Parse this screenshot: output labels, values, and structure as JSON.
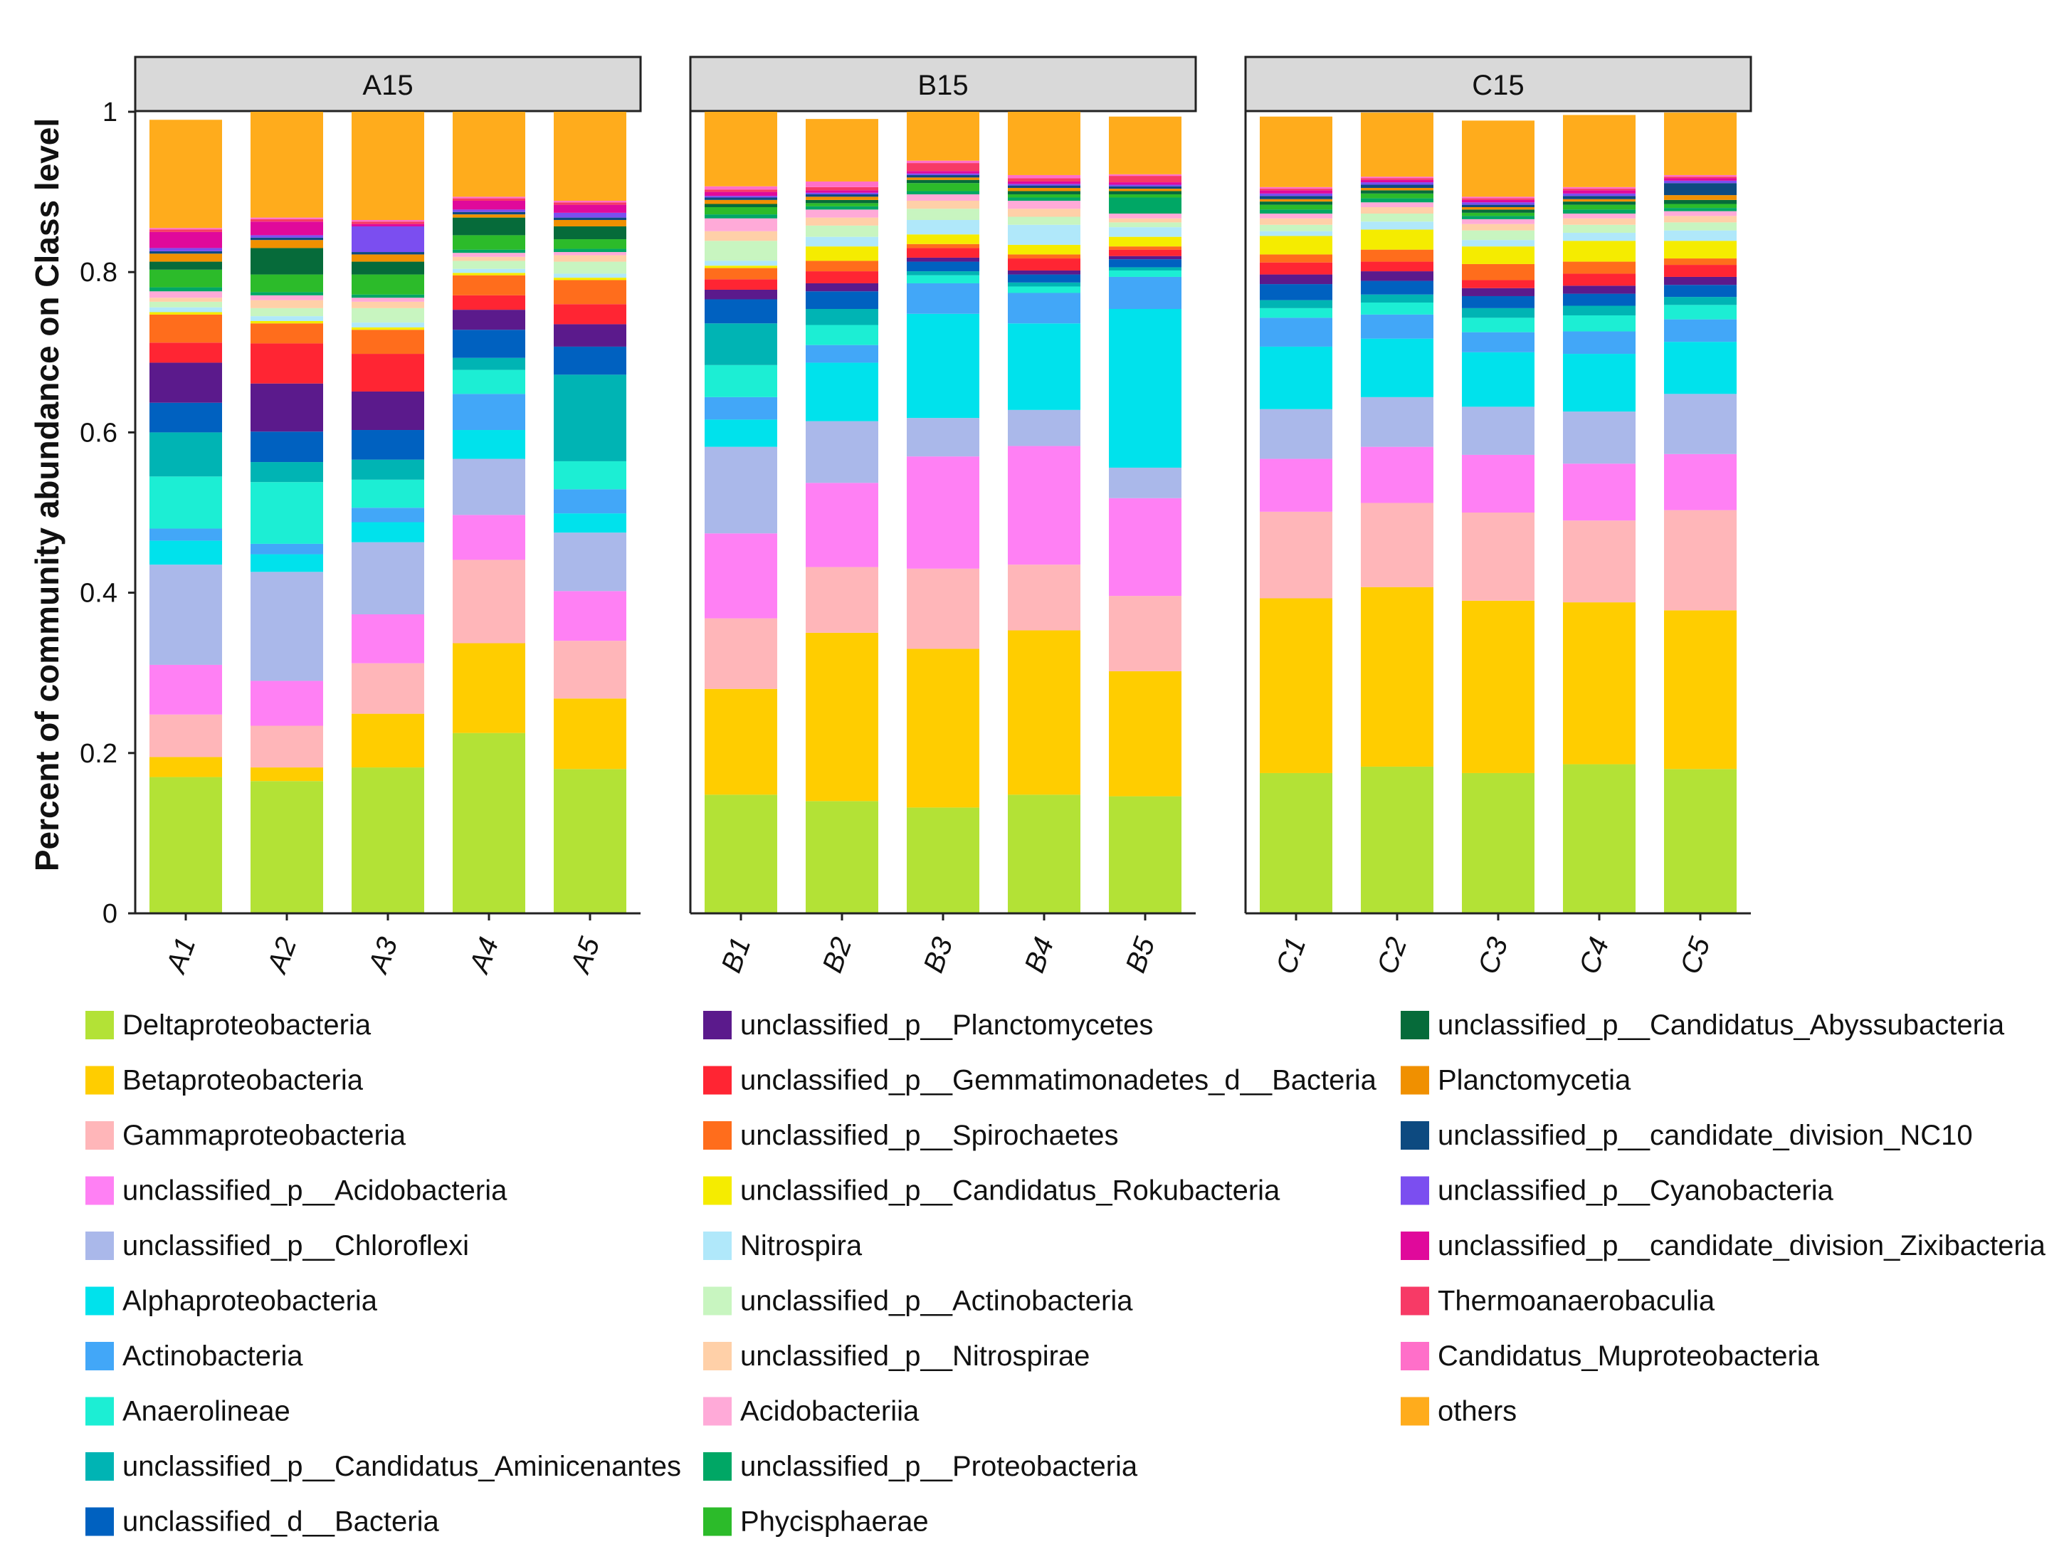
{
  "chart_data": {
    "type": "stacked-bar",
    "ylabel": "Percent of community abundance on Class level",
    "ylim": [
      0,
      1
    ],
    "yticks": [
      "0",
      "0.2",
      "0.4",
      "0.6",
      "0.8",
      "1"
    ],
    "panels": [
      {
        "name": "A15",
        "categories": [
          "A1",
          "A2",
          "A3",
          "A4",
          "A5"
        ]
      },
      {
        "name": "B15",
        "categories": [
          "B1",
          "B2",
          "B3",
          "B4",
          "B5"
        ]
      },
      {
        "name": "C15",
        "categories": [
          "C1",
          "C2",
          "C3",
          "C4",
          "C5"
        ]
      }
    ],
    "series": [
      {
        "name": "Deltaproteobacteria",
        "color": "#b3e236",
        "values": [
          0.17,
          0.165,
          0.182,
          0.225,
          0.18,
          0.148,
          0.14,
          0.132,
          0.148,
          0.146,
          0.175,
          0.183,
          0.175,
          0.186,
          0.18
        ]
      },
      {
        "name": "Betaproteobacteria",
        "color": "#ffcd00",
        "values": [
          0.025,
          0.017,
          0.067,
          0.112,
          0.088,
          0.132,
          0.21,
          0.198,
          0.205,
          0.156,
          0.218,
          0.224,
          0.215,
          0.202,
          0.198
        ]
      },
      {
        "name": "Gammaproteobacteria",
        "color": "#ffb6b9",
        "values": [
          0.053,
          0.052,
          0.063,
          0.104,
          0.072,
          0.088,
          0.082,
          0.1,
          0.082,
          0.094,
          0.108,
          0.105,
          0.11,
          0.102,
          0.125
        ]
      },
      {
        "name": "unclassified_p__Acidobacteria",
        "color": "#ff80f4",
        "values": [
          0.062,
          0.056,
          0.061,
          0.056,
          0.062,
          0.106,
          0.105,
          0.14,
          0.148,
          0.122,
          0.066,
          0.07,
          0.072,
          0.071,
          0.07
        ]
      },
      {
        "name": "unclassified_p__Chloroflexi",
        "color": "#aab8ea",
        "values": [
          0.125,
          0.136,
          0.09,
          0.07,
          0.073,
          0.108,
          0.077,
          0.048,
          0.045,
          0.038,
          0.062,
          0.062,
          0.06,
          0.065,
          0.075
        ]
      },
      {
        "name": "Alphaproteobacteria",
        "color": "#00e2ec",
        "values": [
          0.03,
          0.022,
          0.025,
          0.036,
          0.024,
          0.034,
          0.073,
          0.13,
          0.108,
          0.198,
          0.078,
          0.073,
          0.068,
          0.072,
          0.065
        ]
      },
      {
        "name": "Actinobacteria",
        "color": "#42a7f8",
        "values": [
          0.015,
          0.013,
          0.018,
          0.045,
          0.03,
          0.028,
          0.022,
          0.038,
          0.038,
          0.04,
          0.036,
          0.03,
          0.025,
          0.028,
          0.028
        ]
      },
      {
        "name": "Anaerolineae",
        "color": "#1ceed4",
        "values": [
          0.065,
          0.077,
          0.035,
          0.03,
          0.035,
          0.04,
          0.025,
          0.01,
          0.008,
          0.008,
          0.012,
          0.015,
          0.018,
          0.02,
          0.018
        ]
      },
      {
        "name": "unclassified_p__Candidatus_Aminicenantes",
        "color": "#00b4b4",
        "values": [
          0.055,
          0.025,
          0.025,
          0.015,
          0.108,
          0.052,
          0.02,
          0.005,
          0.005,
          0.004,
          0.01,
          0.01,
          0.012,
          0.012,
          0.01
        ]
      },
      {
        "name": "unclassified_d__Bacteria",
        "color": "#0061c0",
        "values": [
          0.037,
          0.038,
          0.037,
          0.035,
          0.035,
          0.03,
          0.022,
          0.012,
          0.01,
          0.01,
          0.02,
          0.017,
          0.015,
          0.015,
          0.015
        ]
      },
      {
        "name": "unclassified_p__Planctomycetes",
        "color": "#5b1a8c",
        "values": [
          0.05,
          0.06,
          0.048,
          0.025,
          0.028,
          0.012,
          0.01,
          0.005,
          0.005,
          0.004,
          0.012,
          0.012,
          0.01,
          0.01,
          0.01
        ]
      },
      {
        "name": "unclassified_p__Gemmatimonadetes_d__Bacteria",
        "color": "#ff2533",
        "values": [
          0.025,
          0.05,
          0.047,
          0.018,
          0.025,
          0.013,
          0.015,
          0.012,
          0.015,
          0.008,
          0.015,
          0.012,
          0.01,
          0.015,
          0.015
        ]
      },
      {
        "name": "unclassified_p__Spirochaetes",
        "color": "#ff6d1c",
        "values": [
          0.035,
          0.025,
          0.03,
          0.025,
          0.03,
          0.014,
          0.013,
          0.005,
          0.005,
          0.004,
          0.01,
          0.015,
          0.02,
          0.015,
          0.008
        ]
      },
      {
        "name": "unclassified_p__Candidatus_Rokubacteria",
        "color": "#f5ec00",
        "values": [
          0.003,
          0.003,
          0.003,
          0.003,
          0.003,
          0.003,
          0.018,
          0.012,
          0.012,
          0.012,
          0.023,
          0.025,
          0.022,
          0.026,
          0.022
        ]
      },
      {
        "name": "Nitrospira",
        "color": "#b0e8fa",
        "values": [
          0.006,
          0.006,
          0.006,
          0.005,
          0.005,
          0.006,
          0.012,
          0.018,
          0.025,
          0.012,
          0.006,
          0.01,
          0.008,
          0.01,
          0.013
        ]
      },
      {
        "name": "unclassified_p__Actinobacteria",
        "color": "#c8f5c0",
        "values": [
          0.007,
          0.01,
          0.018,
          0.01,
          0.015,
          0.025,
          0.014,
          0.014,
          0.01,
          0.006,
          0.008,
          0.01,
          0.012,
          0.01,
          0.01
        ]
      },
      {
        "name": "unclassified_p__Nitrospirae",
        "color": "#ffd0a8",
        "values": [
          0.005,
          0.01,
          0.008,
          0.005,
          0.008,
          0.012,
          0.01,
          0.01,
          0.01,
          0.005,
          0.008,
          0.008,
          0.008,
          0.008,
          0.008
        ]
      },
      {
        "name": "Acidobacteriia",
        "color": "#ffaad8",
        "values": [
          0.008,
          0.006,
          0.005,
          0.005,
          0.004,
          0.016,
          0.01,
          0.008,
          0.01,
          0.006,
          0.006,
          0.006,
          0.006,
          0.006,
          0.006
        ]
      },
      {
        "name": "unclassified_p__Proteobacteria",
        "color": "#00a765",
        "values": [
          0.005,
          0.004,
          0.004,
          0.004,
          0.004,
          0.005,
          0.004,
          0.004,
          0.004,
          0.02,
          0.005,
          0.005,
          0.004,
          0.005,
          0.004
        ]
      },
      {
        "name": "Phycisphaerae",
        "color": "#2cbb2a",
        "values": [
          0.022,
          0.022,
          0.025,
          0.018,
          0.012,
          0.009,
          0.004,
          0.01,
          0.004,
          0.004,
          0.006,
          0.006,
          0.004,
          0.006,
          0.005
        ]
      },
      {
        "name": "unclassified_p__Candidatus_Abyssubacteria",
        "color": "#066b3a",
        "values": [
          0.01,
          0.033,
          0.016,
          0.022,
          0.016,
          0.004,
          0.004,
          0.004,
          0.004,
          0.004,
          0.004,
          0.004,
          0.004,
          0.004,
          0.005
        ]
      },
      {
        "name": "Planctomycetia",
        "color": "#f09000",
        "values": [
          0.01,
          0.01,
          0.009,
          0.004,
          0.008,
          0.005,
          0.004,
          0.003,
          0.004,
          0.003,
          0.003,
          0.003,
          0.003,
          0.003,
          0.006
        ]
      },
      {
        "name": "unclassified_p__candidate_division_NC10",
        "color": "#0d4a80",
        "values": [
          0.003,
          0.003,
          0.003,
          0.003,
          0.003,
          0.003,
          0.003,
          0.003,
          0.003,
          0.003,
          0.004,
          0.004,
          0.003,
          0.004,
          0.015
        ]
      },
      {
        "name": "unclassified_p__Cyanobacteria",
        "color": "#7b4ef0",
        "values": [
          0.004,
          0.003,
          0.032,
          0.003,
          0.006,
          0.002,
          0.002,
          0.002,
          0.002,
          0.002,
          0.003,
          0.003,
          0.003,
          0.003,
          0.003
        ]
      },
      {
        "name": "unclassified_p__candidate_division_Zixibacteria",
        "color": "#e0099b",
        "values": [
          0.02,
          0.017,
          0.003,
          0.011,
          0.01,
          0.005,
          0.003,
          0.003,
          0.003,
          0.003,
          0.004,
          0.003,
          0.003,
          0.004,
          0.003
        ]
      },
      {
        "name": "Thermoanaerobaculia",
        "color": "#f73a66",
        "values": [
          0.003,
          0.003,
          0.003,
          0.003,
          0.003,
          0.003,
          0.004,
          0.01,
          0.004,
          0.008,
          0.002,
          0.002,
          0.002,
          0.002,
          0.002
        ]
      },
      {
        "name": "Candidatus_Muproteobacteria",
        "color": "#ff6fc9",
        "values": [
          0.002,
          0.002,
          0.002,
          0.002,
          0.002,
          0.004,
          0.007,
          0.003,
          0.004,
          0.002,
          0.002,
          0.002,
          0.002,
          0.002,
          0.002
        ]
      },
      {
        "name": "others",
        "color": "#ffac1c",
        "values": [
          0.135,
          0.14,
          0.135,
          0.108,
          0.12,
          0.1,
          0.078,
          0.067,
          0.08,
          0.072,
          0.088,
          0.08,
          0.095,
          0.09,
          0.078
        ]
      }
    ]
  }
}
